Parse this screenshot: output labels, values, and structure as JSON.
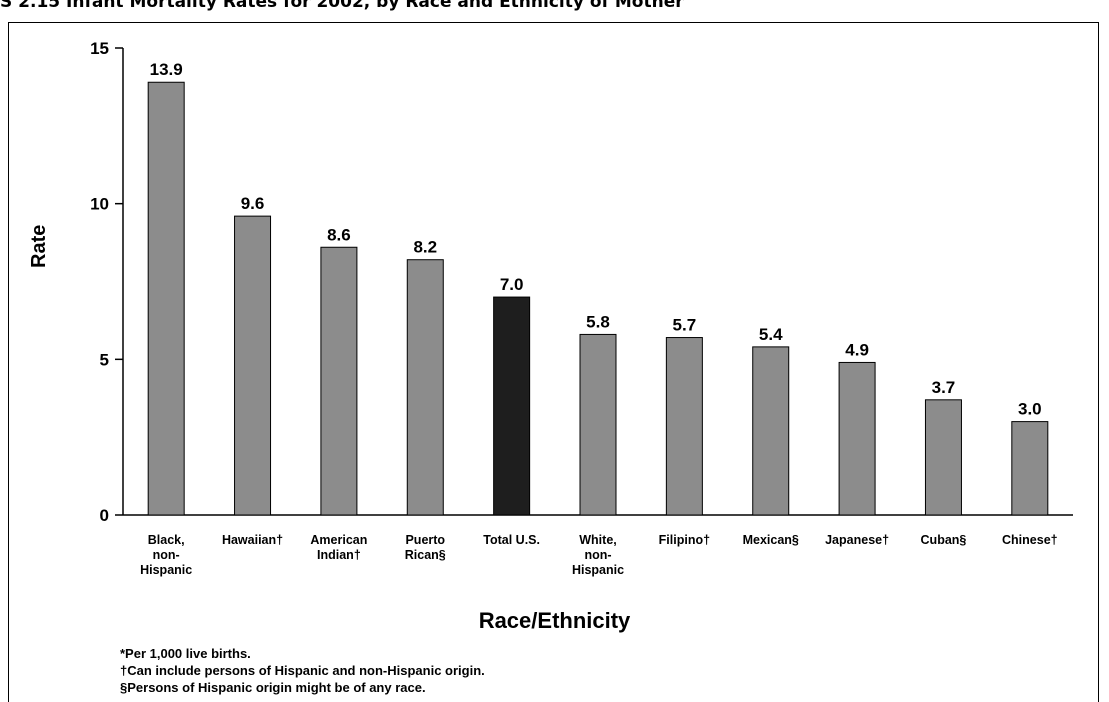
{
  "title": "S 2.15 Infant Mortality Rates for 2002, by Race and Ethnicity of Mother",
  "chart_data": {
    "type": "bar",
    "ylabel": "Rate",
    "xlabel": "Race/Ethnicity",
    "ylim": [
      0,
      15
    ],
    "yticks": [
      "0",
      "5",
      "10",
      "15"
    ],
    "categories": [
      [
        "Black,",
        "non-",
        "Hispanic"
      ],
      [
        "Hawaiian†"
      ],
      [
        "American",
        "Indian†"
      ],
      [
        "Puerto",
        "Rican§"
      ],
      [
        "Total U.S."
      ],
      [
        "White,",
        "non-",
        "Hispanic"
      ],
      [
        "Filipino†"
      ],
      [
        "Mexican§"
      ],
      [
        "Japanese†"
      ],
      [
        "Cuban§"
      ],
      [
        "Chinese†"
      ]
    ],
    "values": [
      13.9,
      9.6,
      8.6,
      8.2,
      7.0,
      5.8,
      5.7,
      5.4,
      4.9,
      3.7,
      3.0
    ],
    "value_labels": [
      "13.9",
      "9.6",
      "8.6",
      "8.2",
      "7.0",
      "5.8",
      "5.7",
      "5.4",
      "4.9",
      "3.7",
      "3.0"
    ],
    "highlight_index": 4,
    "bar_color": "#8c8c8c",
    "highlight_color": "#1e1e1e",
    "grid": false
  },
  "footnotes": [
    "*Per 1,000 live births.",
    "†Can include persons of Hispanic and non-Hispanic origin.",
    "§Persons of Hispanic origin might be of any race."
  ]
}
